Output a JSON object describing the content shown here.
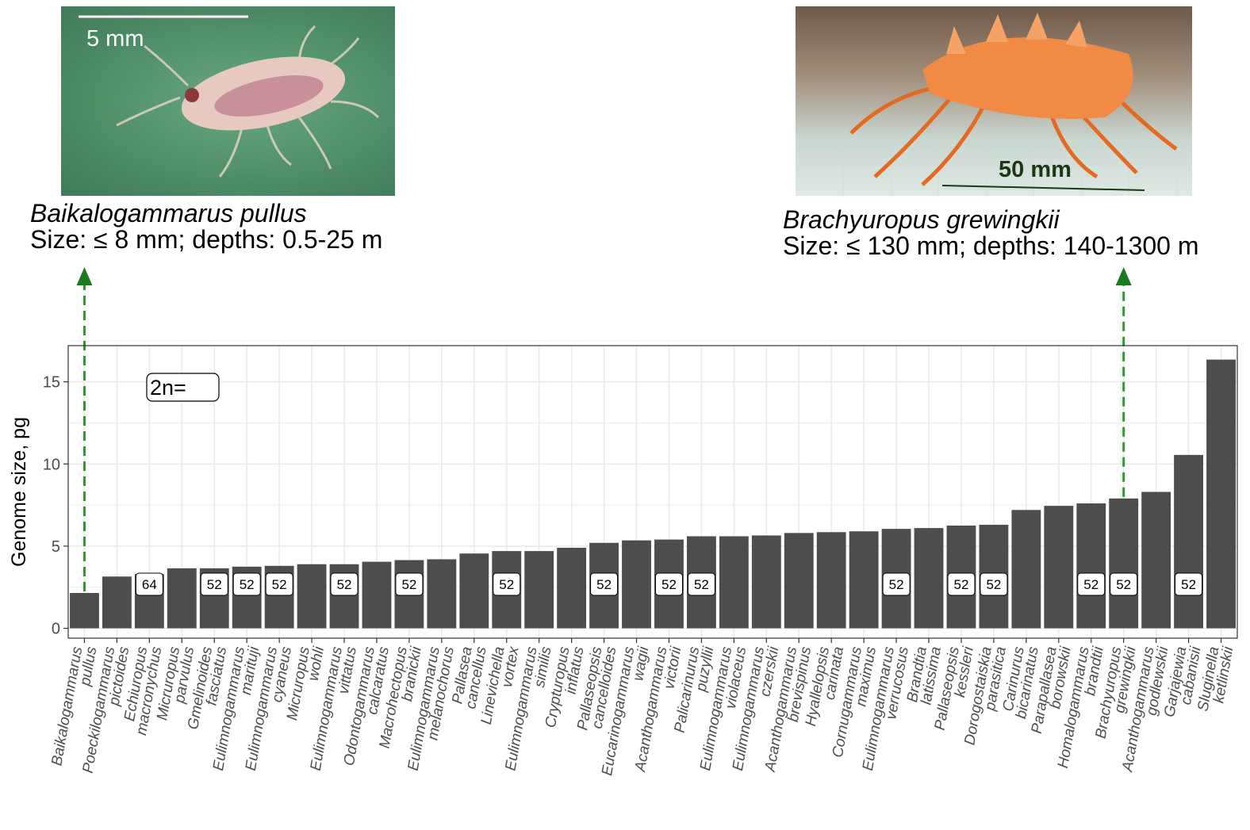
{
  "photos": {
    "left": {
      "scale_label": "5 mm",
      "species": "Baikalogammarus pullus",
      "info": "Size:  ≤ 8 mm; depths: 0.5-25 m"
    },
    "right": {
      "scale_label": "50 mm",
      "species": "Brachyuropus grewingkii",
      "info": "Size:  ≤ 130 mm; depths: 140-1300 m"
    }
  },
  "colors": {
    "bar": "#4d4d4d",
    "arrow": "#2e9a2e",
    "arrowhead": "#1c7a1c",
    "grid": "#ebebeb"
  },
  "chart_data": {
    "type": "bar",
    "title": "",
    "xlabel": "",
    "ylabel": "Genome size, pg",
    "ylim": [
      -0.6,
      17.2
    ],
    "yticks": [
      0,
      5,
      10,
      15
    ],
    "legend_label": "2n=",
    "categories": [
      [
        "Baikalogammarus",
        "pullus"
      ],
      [
        "Poeckilogammarus",
        "pictoides"
      ],
      [
        "Echiuropus",
        "macronychus"
      ],
      [
        "Micruropus",
        "parvulus"
      ],
      [
        "Gmelinoides",
        "fasciatus"
      ],
      [
        "Eulimnogammarus",
        "marituji"
      ],
      [
        "Eulimnogammarus",
        "cyaneus"
      ],
      [
        "Micruropus",
        "wohli"
      ],
      [
        "Eulimnogammarus",
        "vittatus"
      ],
      [
        "Odontogammarus",
        "calcaratus"
      ],
      [
        "Macrohectopus",
        "branickii"
      ],
      [
        "Eulimnogammarus",
        "melanochorus"
      ],
      [
        "Pallasea",
        "cancellus"
      ],
      [
        "Linevichella",
        "vortex"
      ],
      [
        "Eulimnogammarus",
        "similis"
      ],
      [
        "Crypturopus",
        "inflatus"
      ],
      [
        "Pallaseopsis",
        "cancelloides"
      ],
      [
        "Eucarinogammarus",
        "wagii"
      ],
      [
        "Acanthogammarus",
        "victorii"
      ],
      [
        "Palicarinurus",
        "puzyllii"
      ],
      [
        "Eulimnogammarus",
        "violaceus"
      ],
      [
        "Eulimnogammarus",
        "czerskii"
      ],
      [
        "Acanthogammarus",
        "brevispinus"
      ],
      [
        "Hyallelopsis",
        "carinata"
      ],
      [
        "Cornugammarus",
        "maximus"
      ],
      [
        "Eulimnogammarus",
        "verrucosus"
      ],
      [
        "Brandtia",
        "latissima"
      ],
      [
        "Pallaseopsis",
        "kessleri"
      ],
      [
        "Dorogostaiskia",
        "parasitica"
      ],
      [
        "Carinurus",
        "bicarinatus"
      ],
      [
        "Parapallasea",
        "borowskii"
      ],
      [
        "Homalogammarus",
        "brandtii"
      ],
      [
        "Brachyuropus",
        "grewingkii"
      ],
      [
        "Acanthogammarus",
        "godlewskii"
      ],
      [
        "Garjajewia",
        "cabanisii"
      ],
      [
        "Sluginella",
        "ketlinskii"
      ]
    ],
    "values": [
      2.15,
      3.15,
      3.3,
      3.65,
      3.65,
      3.75,
      3.8,
      3.9,
      3.9,
      4.05,
      4.15,
      4.2,
      4.55,
      4.7,
      4.7,
      4.9,
      5.2,
      5.35,
      5.4,
      5.6,
      5.6,
      5.65,
      5.8,
      5.85,
      5.9,
      6.05,
      6.1,
      6.25,
      6.3,
      7.2,
      7.45,
      7.6,
      7.9,
      8.3,
      10.55,
      16.35
    ],
    "chromosome_labels": [
      "",
      "",
      "64",
      "",
      "52",
      "52",
      "52",
      "",
      "52",
      "",
      "52",
      "",
      "",
      "52",
      "",
      "",
      "52",
      "",
      "52",
      "52",
      "",
      "",
      "",
      "",
      "",
      "52",
      "",
      "52",
      "52",
      "",
      "",
      "52",
      "52",
      "",
      "52",
      ""
    ],
    "highlighted": [
      0,
      32
    ]
  }
}
